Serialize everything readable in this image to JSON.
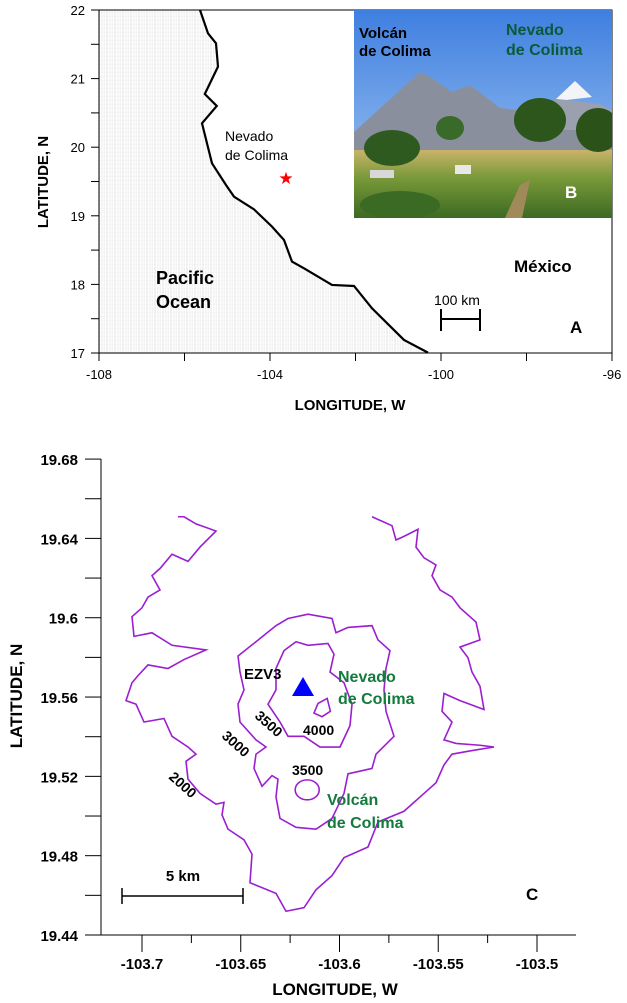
{
  "panel_a": {
    "panel_label": "A",
    "xlabel": "LONGITUDE, W",
    "ylabel": "LATITUDE, N",
    "x_ticks": [
      -108,
      -104,
      -100,
      -96
    ],
    "y_ticks": [
      22,
      21,
      20,
      19,
      18,
      17
    ],
    "xlim": [
      -108,
      -96
    ],
    "ylim": [
      17,
      22
    ],
    "ocean_label": [
      "Pacific",
      "Ocean"
    ],
    "country_label": "México",
    "site_label": [
      "Nevado",
      "de Colima"
    ],
    "site_marker": "red-star",
    "site_color": "#ff0000",
    "scale_label": "100 km"
  },
  "panel_b": {
    "panel_label": "B",
    "left_label": [
      "Volcán",
      "de Colima"
    ],
    "right_label": [
      "Nevado",
      "de Colima"
    ],
    "right_label_color": "#0a5a3a"
  },
  "panel_c": {
    "panel_label": "C",
    "xlabel": "LONGITUDE, W",
    "ylabel": "LATITUDE, N",
    "x_ticks": [
      "-103.7",
      "-103.65",
      "-103.6",
      "-103.55",
      "-103.5"
    ],
    "y_ticks": [
      "19.68",
      "19.64",
      "19.6",
      "19.56",
      "19.52",
      "19.48",
      "19.44"
    ],
    "xlim": [
      -103.72,
      -103.48
    ],
    "ylim": [
      19.44,
      19.68
    ],
    "contour_color": "#9b1fd0",
    "contour_levels": [
      "2000",
      "3000",
      "3500",
      "3500",
      "4000"
    ],
    "station_label": "EZV3",
    "station_marker": "blue-triangle",
    "station_color": "#0000ff",
    "nevado_label": [
      "Nevado",
      "de Colima"
    ],
    "volcan_label": [
      "Volcán",
      "de Colima"
    ],
    "label_color": "#137a3c",
    "scale_label": "5 km"
  }
}
